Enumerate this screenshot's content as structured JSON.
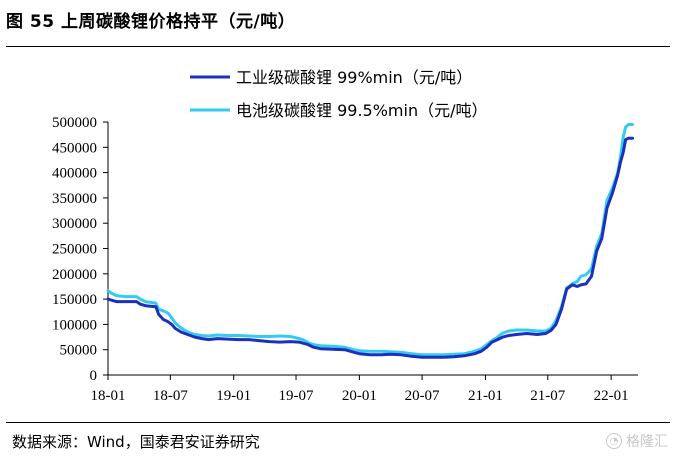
{
  "figure": {
    "title": "图 55  上周碳酸锂价格持平（元/吨）",
    "source": "数据来源：Wind，国泰君安证券研究",
    "watermark": "格隆汇",
    "watermark_icon": "logo-icon"
  },
  "chart_data": {
    "type": "line",
    "title": "",
    "xlabel": "",
    "ylabel": "",
    "ylim": [
      0,
      500000
    ],
    "yticks": [
      0,
      50000,
      100000,
      150000,
      200000,
      250000,
      300000,
      350000,
      400000,
      450000,
      500000
    ],
    "ytick_labels": [
      "0",
      "50000",
      "100000",
      "150000",
      "200000",
      "250000",
      "300000",
      "350000",
      "400000",
      "450000",
      "500000"
    ],
    "xlim": [
      "2018-01-01",
      "2022-03-20"
    ],
    "xticks": [
      "2018-01-01",
      "2018-07-01",
      "2019-01-01",
      "2019-07-01",
      "2020-01-01",
      "2020-07-01",
      "2021-01-01",
      "2021-07-01",
      "2022-01-01"
    ],
    "xtick_labels": [
      "18-01",
      "18-07",
      "19-01",
      "19-07",
      "20-01",
      "20-07",
      "21-01",
      "21-07",
      "22-01"
    ],
    "grid": false,
    "legend_position": "top-center",
    "series": [
      {
        "name": "工业级碳酸锂 99%min（元/吨）",
        "color": "#1c2fbd",
        "points": [
          [
            "2018-01-01",
            150000
          ],
          [
            "2018-01-10",
            148000
          ],
          [
            "2018-01-25",
            145000
          ],
          [
            "2018-02-20",
            145000
          ],
          [
            "2018-03-25",
            145000
          ],
          [
            "2018-04-05",
            140000
          ],
          [
            "2018-04-20",
            137000
          ],
          [
            "2018-05-20",
            135000
          ],
          [
            "2018-05-28",
            120000
          ],
          [
            "2018-06-10",
            110000
          ],
          [
            "2018-06-25",
            105000
          ],
          [
            "2018-07-05",
            100000
          ],
          [
            "2018-07-15",
            92000
          ],
          [
            "2018-08-01",
            85000
          ],
          [
            "2018-08-20",
            80000
          ],
          [
            "2018-09-10",
            75000
          ],
          [
            "2018-10-01",
            72000
          ],
          [
            "2018-10-20",
            70000
          ],
          [
            "2018-11-15",
            72000
          ],
          [
            "2018-12-15",
            71000
          ],
          [
            "2019-01-15",
            70000
          ],
          [
            "2019-02-15",
            70000
          ],
          [
            "2019-03-15",
            68000
          ],
          [
            "2019-04-15",
            66000
          ],
          [
            "2019-05-15",
            65000
          ],
          [
            "2019-06-15",
            66000
          ],
          [
            "2019-07-10",
            65000
          ],
          [
            "2019-07-20",
            63000
          ],
          [
            "2019-08-05",
            60000
          ],
          [
            "2019-08-20",
            55000
          ],
          [
            "2019-09-10",
            52000
          ],
          [
            "2019-10-15",
            51000
          ],
          [
            "2019-11-20",
            50000
          ],
          [
            "2019-12-15",
            45000
          ],
          [
            "2020-01-01",
            42000
          ],
          [
            "2020-02-01",
            40000
          ],
          [
            "2020-03-01",
            40000
          ],
          [
            "2020-04-01",
            41000
          ],
          [
            "2020-05-01",
            40000
          ],
          [
            "2020-06-01",
            37000
          ],
          [
            "2020-07-01",
            35000
          ],
          [
            "2020-08-01",
            35000
          ],
          [
            "2020-09-01",
            35000
          ],
          [
            "2020-10-01",
            36000
          ],
          [
            "2020-11-01",
            38000
          ],
          [
            "2020-12-01",
            42000
          ],
          [
            "2020-12-20",
            47000
          ],
          [
            "2021-01-05",
            55000
          ],
          [
            "2021-01-20",
            65000
          ],
          [
            "2021-02-05",
            70000
          ],
          [
            "2021-02-20",
            75000
          ],
          [
            "2021-03-10",
            78000
          ],
          [
            "2021-04-01",
            80000
          ],
          [
            "2021-05-01",
            82000
          ],
          [
            "2021-06-01",
            80000
          ],
          [
            "2021-06-25",
            82000
          ],
          [
            "2021-07-10",
            88000
          ],
          [
            "2021-07-25",
            100000
          ],
          [
            "2021-08-10",
            130000
          ],
          [
            "2021-08-25",
            170000
          ],
          [
            "2021-09-10",
            178000
          ],
          [
            "2021-09-25",
            175000
          ],
          [
            "2021-10-05",
            178000
          ],
          [
            "2021-10-20",
            180000
          ],
          [
            "2021-11-05",
            195000
          ],
          [
            "2021-11-20",
            245000
          ],
          [
            "2021-12-05",
            270000
          ],
          [
            "2021-12-20",
            330000
          ],
          [
            "2022-01-05",
            360000
          ],
          [
            "2022-01-20",
            395000
          ],
          [
            "2022-01-28",
            420000
          ],
          [
            "2022-02-05",
            440000
          ],
          [
            "2022-02-12",
            465000
          ],
          [
            "2022-02-20",
            468000
          ],
          [
            "2022-03-04",
            468000
          ]
        ]
      },
      {
        "name": "电池级碳酸锂 99.5%min（元/吨）",
        "color": "#33ccf0",
        "points": [
          [
            "2018-01-01",
            167000
          ],
          [
            "2018-01-10",
            162000
          ],
          [
            "2018-01-25",
            157000
          ],
          [
            "2018-02-20",
            155000
          ],
          [
            "2018-03-25",
            155000
          ],
          [
            "2018-04-05",
            150000
          ],
          [
            "2018-04-20",
            145000
          ],
          [
            "2018-05-20",
            142000
          ],
          [
            "2018-05-28",
            130000
          ],
          [
            "2018-06-10",
            127000
          ],
          [
            "2018-06-25",
            122000
          ],
          [
            "2018-07-05",
            113000
          ],
          [
            "2018-07-15",
            103000
          ],
          [
            "2018-08-01",
            93000
          ],
          [
            "2018-08-20",
            85000
          ],
          [
            "2018-09-10",
            80000
          ],
          [
            "2018-10-01",
            78000
          ],
          [
            "2018-10-20",
            77000
          ],
          [
            "2018-11-15",
            79000
          ],
          [
            "2018-12-15",
            78000
          ],
          [
            "2019-01-15",
            78000
          ],
          [
            "2019-02-15",
            77000
          ],
          [
            "2019-03-15",
            76000
          ],
          [
            "2019-04-15",
            76000
          ],
          [
            "2019-05-15",
            77000
          ],
          [
            "2019-06-15",
            76000
          ],
          [
            "2019-07-10",
            72000
          ],
          [
            "2019-07-20",
            70000
          ],
          [
            "2019-08-05",
            64000
          ],
          [
            "2019-08-20",
            60000
          ],
          [
            "2019-09-10",
            58000
          ],
          [
            "2019-10-15",
            57000
          ],
          [
            "2019-11-20",
            55000
          ],
          [
            "2019-12-15",
            50000
          ],
          [
            "2020-01-01",
            48000
          ],
          [
            "2020-02-01",
            47000
          ],
          [
            "2020-03-01",
            47000
          ],
          [
            "2020-04-01",
            46000
          ],
          [
            "2020-05-01",
            45000
          ],
          [
            "2020-06-01",
            42000
          ],
          [
            "2020-07-01",
            40000
          ],
          [
            "2020-08-01",
            40000
          ],
          [
            "2020-09-01",
            40000
          ],
          [
            "2020-10-01",
            41000
          ],
          [
            "2020-11-01",
            42000
          ],
          [
            "2020-12-01",
            47000
          ],
          [
            "2020-12-20",
            52000
          ],
          [
            "2021-01-05",
            60000
          ],
          [
            "2021-01-20",
            68000
          ],
          [
            "2021-02-05",
            75000
          ],
          [
            "2021-02-20",
            83000
          ],
          [
            "2021-03-10",
            87000
          ],
          [
            "2021-04-01",
            89000
          ],
          [
            "2021-05-01",
            89000
          ],
          [
            "2021-06-01",
            87000
          ],
          [
            "2021-06-25",
            87000
          ],
          [
            "2021-07-10",
            92000
          ],
          [
            "2021-07-25",
            108000
          ],
          [
            "2021-08-10",
            135000
          ],
          [
            "2021-08-25",
            172000
          ],
          [
            "2021-09-10",
            180000
          ],
          [
            "2021-09-25",
            185000
          ],
          [
            "2021-10-05",
            195000
          ],
          [
            "2021-10-20",
            198000
          ],
          [
            "2021-11-05",
            210000
          ],
          [
            "2021-11-20",
            255000
          ],
          [
            "2021-12-05",
            280000
          ],
          [
            "2021-12-20",
            345000
          ],
          [
            "2022-01-05",
            370000
          ],
          [
            "2022-01-20",
            400000
          ],
          [
            "2022-01-28",
            430000
          ],
          [
            "2022-02-05",
            470000
          ],
          [
            "2022-02-12",
            490000
          ],
          [
            "2022-02-20",
            495000
          ],
          [
            "2022-03-04",
            495000
          ]
        ]
      }
    ]
  }
}
